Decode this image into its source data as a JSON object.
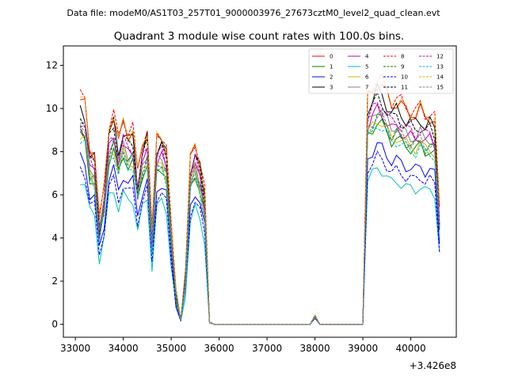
{
  "figure": {
    "suptitle": "Data file: modeM0/AS1T03_257T01_9000003976_27673cztM0_level2_quad_clean.evt"
  },
  "chart_data": {
    "type": "line",
    "title": "Quadrant 3 module wise count rates with 100.0s bins.",
    "xlabel": "",
    "ylabel": "",
    "x_offset_label": "+3.426e8",
    "xlim": [
      32750,
      40950
    ],
    "ylim": [
      -0.6,
      12.9
    ],
    "xticks": [
      33000,
      34000,
      35000,
      36000,
      37000,
      38000,
      39000,
      40000
    ],
    "xtick_labels": [
      "33000",
      "34000",
      "35000",
      "36000",
      "37000",
      "38000",
      "39000",
      "40000"
    ],
    "yticks": [
      0,
      2,
      4,
      6,
      8,
      10,
      12
    ],
    "ytick_labels": [
      "0",
      "2",
      "4",
      "6",
      "8",
      "10",
      "12"
    ],
    "grid": false,
    "legend_position": "top-right",
    "legend_columns": 4,
    "x": [
      33100,
      33200,
      33300,
      33400,
      33500,
      33600,
      33700,
      33800,
      33900,
      34000,
      34100,
      34200,
      34300,
      34400,
      34500,
      34600,
      34700,
      34800,
      34900,
      35000,
      35100,
      35200,
      35300,
      35400,
      35500,
      35600,
      35700,
      35800,
      35900,
      36000,
      36100,
      36200,
      36300,
      36400,
      36500,
      36600,
      36700,
      36800,
      36900,
      37000,
      37100,
      37200,
      37300,
      37400,
      37500,
      37600,
      37700,
      37800,
      37900,
      38000,
      38100,
      38200,
      38300,
      38400,
      38500,
      38600,
      38700,
      38800,
      38900,
      39000,
      39100,
      39200,
      39300,
      39400,
      39500,
      39600,
      39700,
      39800,
      39900,
      40000,
      40100,
      40200,
      40300,
      40400,
      40500,
      40600
    ],
    "base_profile": [
      1,
      0.97,
      0.78,
      0.76,
      0.45,
      0.6,
      0.88,
      0.93,
      0.8,
      0.9,
      0.85,
      0.86,
      0.66,
      0.8,
      0.86,
      0.4,
      0.82,
      0.84,
      0.78,
      0.42,
      0.14,
      0.02,
      0.22,
      0.72,
      0.8,
      0.72,
      0.58,
      0.01,
      0,
      0,
      0,
      0,
      0,
      0,
      0,
      0,
      0,
      0,
      0,
      0,
      0,
      0,
      0,
      0,
      0,
      0,
      0,
      0,
      0,
      0.04,
      0,
      0,
      0,
      0,
      0,
      0,
      0,
      0,
      0,
      0,
      1,
      1.04,
      1.08,
      1.06,
      1.02,
      0.98,
      0.99,
      0.97,
      0.95,
      0.94,
      0.93,
      0.95,
      0.92,
      0.93,
      0.9,
      0.5
    ],
    "series": [
      {
        "name": "0",
        "color": "#ff0000",
        "dash": "solid",
        "level": 10.4
      },
      {
        "name": "1",
        "color": "#008000",
        "dash": "solid",
        "level": 8.7
      },
      {
        "name": "2",
        "color": "#0000ff",
        "dash": "solid",
        "level": 7.7
      },
      {
        "name": "3",
        "color": "#000000",
        "dash": "solid",
        "level": 10.0
      },
      {
        "name": "4",
        "color": "#bf00bf",
        "dash": "solid",
        "level": 9.2
      },
      {
        "name": "5",
        "color": "#00bfbf",
        "dash": "solid",
        "level": 6.7
      },
      {
        "name": "6",
        "color": "#bfbf00",
        "dash": "solid",
        "level": 8.8
      },
      {
        "name": "7",
        "color": "#808080",
        "dash": "solid",
        "level": 9.3
      },
      {
        "name": "8",
        "color": "#ff0000",
        "dash": "dashed",
        "level": 10.6
      },
      {
        "name": "9",
        "color": "#008000",
        "dash": "dashed",
        "level": 8.9
      },
      {
        "name": "10",
        "color": "#0000ff",
        "dash": "dashed",
        "level": 7.2
      },
      {
        "name": "11",
        "color": "#000000",
        "dash": "dashed",
        "level": 9.7
      },
      {
        "name": "12",
        "color": "#bf00bf",
        "dash": "dashed",
        "level": 9.5
      },
      {
        "name": "13",
        "color": "#00bfbf",
        "dash": "dashed",
        "level": 8.6
      },
      {
        "name": "14",
        "color": "#bfbf00",
        "dash": "dashed",
        "level": 10.5
      },
      {
        "name": "15",
        "color": "#808080",
        "dash": "dashed",
        "level": 9.0
      }
    ]
  }
}
